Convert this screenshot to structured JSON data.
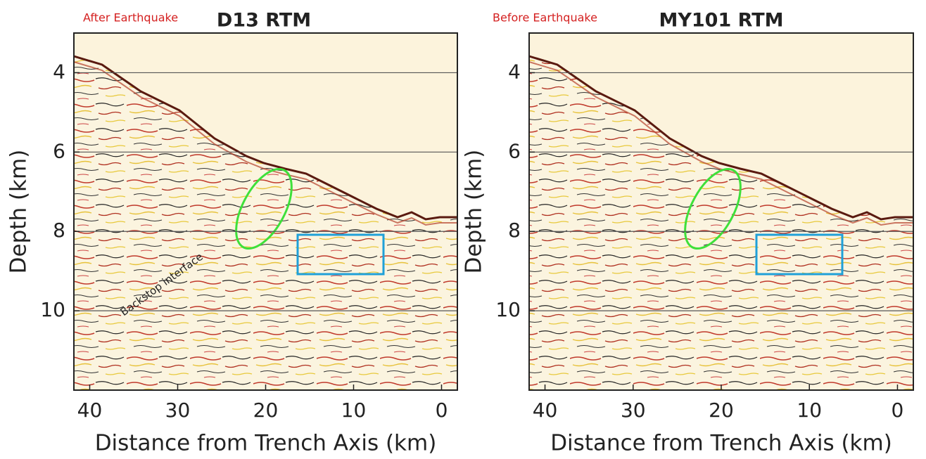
{
  "chart_data": [
    {
      "type": "seismic-image",
      "title": "D13 RTM",
      "note": "After Earthquake",
      "annotation": "Backstop interface",
      "xlabel": "Distance from Trench Axis (km)",
      "ylabel": "Depth (km)",
      "xlim": [
        41.8,
        -1.8
      ],
      "xticks": [
        40,
        30,
        20,
        10,
        0
      ],
      "ylim": [
        3,
        12
      ],
      "yticks": [
        4,
        6,
        8,
        10
      ],
      "grid": true
    },
    {
      "type": "seismic-image",
      "title": "MY101 RTM",
      "note": "Before Earthquake",
      "xlabel": "Distance from Trench Axis (km)",
      "ylabel": "Depth (km)",
      "xlim": [
        41.8,
        -1.8
      ],
      "xticks": [
        40,
        30,
        20,
        10,
        0
      ],
      "ylim": [
        3,
        12
      ],
      "yticks": [
        4,
        6,
        8,
        10
      ],
      "grid": true
    }
  ]
}
